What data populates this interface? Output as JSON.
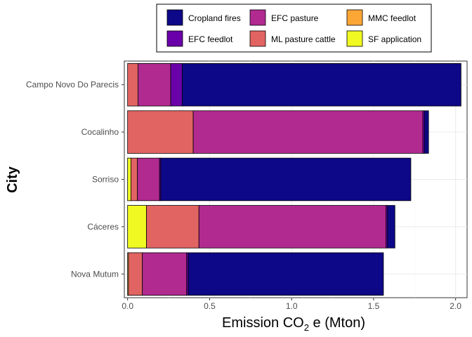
{
  "chart_data": {
    "type": "bar",
    "orientation": "horizontal",
    "stacked": true,
    "xlabel_main": "Emission CO",
    "xlabel_sub": "2",
    "xlabel_rest": " e (Mton)",
    "ylabel": "City",
    "xlim": [
      -0.02,
      2.07
    ],
    "xticks": [
      0.0,
      0.5,
      1.0,
      1.5,
      2.0
    ],
    "xtick_labels": [
      "0.0",
      "0.5",
      "1.0",
      "1.5",
      "2.0"
    ],
    "grid": true,
    "legend_position": "top",
    "categories": [
      "Campo Novo Do Parecis",
      "Cocalinho",
      "Sorriso",
      "Cáceres",
      "Nova Mutum"
    ],
    "series": [
      {
        "name": "SF application",
        "color": "#F0F921",
        "values": [
          0.0,
          0.0,
          0.02,
          0.115,
          0.005
        ]
      },
      {
        "name": "ML pasture cattle",
        "color": "#E16462",
        "values": [
          0.063,
          0.4,
          0.04,
          0.32,
          0.085
        ]
      },
      {
        "name": "EFC pasture",
        "color": "#B12A90",
        "values": [
          0.2,
          1.4,
          0.135,
          1.14,
          0.27
        ]
      },
      {
        "name": "EFC feedlot",
        "color": "#6A00A8",
        "values": [
          0.07,
          0.01,
          0.007,
          0.01,
          0.01
        ]
      },
      {
        "name": "MMC feedlot",
        "color": "#FCA636",
        "values": [
          0.0,
          0.0,
          0.0,
          0.0,
          0.0
        ]
      },
      {
        "name": "Cropland fires",
        "color": "#0D0887",
        "values": [
          1.7,
          0.025,
          1.525,
          0.045,
          1.19
        ]
      }
    ],
    "legend_order": [
      "Cropland fires",
      "EFC pasture",
      "MMC feedlot",
      "EFC feedlot",
      "ML pasture cattle",
      "SF application"
    ]
  }
}
